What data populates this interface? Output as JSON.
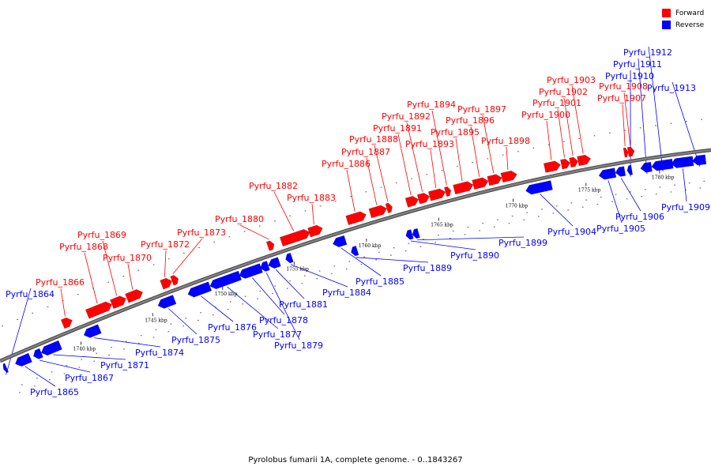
{
  "title": "Pyrolobus fumarii 1A, complete genome. - 0..1843267",
  "colors": {
    "forward": "#ff0000",
    "reverse": "#0000ff",
    "backbone": "#808080"
  },
  "legend": [
    {
      "label": "Forward",
      "strand": "forward"
    },
    {
      "label": "Reverse",
      "strand": "reverse"
    }
  ],
  "kbp_ticks": [
    "1740 kbp",
    "1745 kbp",
    "1750 kbp",
    "1755 kbp",
    "1760 kbp",
    "1765 kbp",
    "1770 kbp",
    "1775 kbp",
    "1780 kbp"
  ],
  "genes": [
    {
      "name": "Pyrfu_1864",
      "strand": "reverse"
    },
    {
      "name": "Pyrfu_1865",
      "strand": "reverse"
    },
    {
      "name": "Pyrfu_1866",
      "strand": "forward"
    },
    {
      "name": "Pyrfu_1867",
      "strand": "reverse"
    },
    {
      "name": "Pyrfu_1868",
      "strand": "forward"
    },
    {
      "name": "Pyrfu_1869",
      "strand": "forward"
    },
    {
      "name": "Pyrfu_1870",
      "strand": "forward"
    },
    {
      "name": "Pyrfu_1871",
      "strand": "reverse"
    },
    {
      "name": "Pyrfu_1872",
      "strand": "forward"
    },
    {
      "name": "Pyrfu_1873",
      "strand": "forward"
    },
    {
      "name": "Pyrfu_1874",
      "strand": "reverse"
    },
    {
      "name": "Pyrfu_1875",
      "strand": "reverse"
    },
    {
      "name": "Pyrfu_1876",
      "strand": "reverse"
    },
    {
      "name": "Pyrfu_1877",
      "strand": "reverse"
    },
    {
      "name": "Pyrfu_1878",
      "strand": "reverse"
    },
    {
      "name": "Pyrfu_1879",
      "strand": "reverse"
    },
    {
      "name": "Pyrfu_1880",
      "strand": "forward"
    },
    {
      "name": "Pyrfu_1881",
      "strand": "reverse"
    },
    {
      "name": "Pyrfu_1882",
      "strand": "forward"
    },
    {
      "name": "Pyrfu_1883",
      "strand": "forward"
    },
    {
      "name": "Pyrfu_1884",
      "strand": "reverse"
    },
    {
      "name": "Pyrfu_1885",
      "strand": "reverse"
    },
    {
      "name": "Pyrfu_1886",
      "strand": "forward"
    },
    {
      "name": "Pyrfu_1887",
      "strand": "forward"
    },
    {
      "name": "Pyrfu_1888",
      "strand": "forward"
    },
    {
      "name": "Pyrfu_1889",
      "strand": "reverse"
    },
    {
      "name": "Pyrfu_1890",
      "strand": "reverse"
    },
    {
      "name": "Pyrfu_1891",
      "strand": "forward"
    },
    {
      "name": "Pyrfu_1892",
      "strand": "forward"
    },
    {
      "name": "Pyrfu_1893",
      "strand": "forward"
    },
    {
      "name": "Pyrfu_1894",
      "strand": "forward"
    },
    {
      "name": "Pyrfu_1895",
      "strand": "forward"
    },
    {
      "name": "Pyrfu_1896",
      "strand": "forward"
    },
    {
      "name": "Pyrfu_1897",
      "strand": "forward"
    },
    {
      "name": "Pyrfu_1898",
      "strand": "forward"
    },
    {
      "name": "Pyrfu_1899",
      "strand": "reverse"
    },
    {
      "name": "Pyrfu_1900",
      "strand": "forward"
    },
    {
      "name": "Pyrfu_1901",
      "strand": "forward"
    },
    {
      "name": "Pyrfu_1902",
      "strand": "forward"
    },
    {
      "name": "Pyrfu_1903",
      "strand": "forward"
    },
    {
      "name": "Pyrfu_1904",
      "strand": "reverse"
    },
    {
      "name": "Pyrfu_1905",
      "strand": "reverse"
    },
    {
      "name": "Pyrfu_1906",
      "strand": "reverse"
    },
    {
      "name": "Pyrfu_1907",
      "strand": "forward"
    },
    {
      "name": "Pyrfu_1908",
      "strand": "forward"
    },
    {
      "name": "Pyrfu_1909",
      "strand": "reverse"
    },
    {
      "name": "Pyrfu_1910",
      "strand": "reverse"
    },
    {
      "name": "Pyrfu_1911",
      "strand": "reverse"
    },
    {
      "name": "Pyrfu_1912",
      "strand": "reverse"
    },
    {
      "name": "Pyrfu_1913",
      "strand": "reverse"
    }
  ]
}
